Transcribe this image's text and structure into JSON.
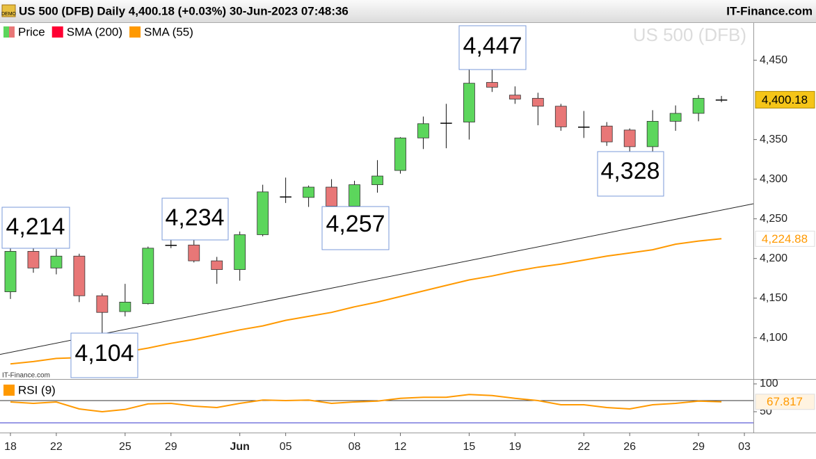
{
  "header": {
    "badge": "DEMO",
    "title": "US 500 (DFB) Daily 4,400.18 (+0.03%) 30-Jun-2023 07:48:36",
    "brand": "IT-Finance.com",
    "source": "IT-Finance.com"
  },
  "chart_data": [
    {
      "type": "candlestick",
      "watermark": "US 500 (DFB)",
      "categories": [
        "18",
        null,
        "22",
        null,
        null,
        "25",
        null,
        "29",
        null,
        null,
        "Jun",
        null,
        "05",
        null,
        null,
        "08",
        null,
        "12",
        null,
        null,
        "15",
        null,
        "19",
        null,
        null,
        "22",
        null,
        "26",
        null,
        null,
        "29",
        null,
        "03"
      ],
      "series": [
        {
          "name": "Price",
          "up_color": "#5cd65c",
          "down_color": "#e87777",
          "open": [
            4158,
            4209,
            4188,
            4203,
            4153,
            4133,
            4143,
            4217,
            4217,
            4197,
            4186,
            4230,
            4278,
            4277,
            4290,
            4266,
            4293,
            4311,
            4352,
            4371,
            4372,
            4422,
            4406,
            4402,
            4392,
            4366,
            4367,
            4362,
            4341,
            4373,
            4383,
            4400,
            null
          ],
          "high": [
            4214,
            4214,
            4212,
            4206,
            4156,
            4168,
            4215,
            4225,
            4234,
            4202,
            4234,
            4293,
            4302,
            4292,
            4300,
            4298,
            4324,
            4353,
            4379,
            4395,
            4442,
            4447,
            4417,
            4409,
            4395,
            4386,
            4372,
            4364,
            4387,
            4393,
            4406,
            4405,
            null
          ],
          "low": [
            4149,
            4182,
            4180,
            4145,
            4104,
            4127,
            4142,
            4213,
            4195,
            4168,
            4172,
            4228,
            4270,
            4265,
            4265,
            4257,
            4283,
            4307,
            4338,
            4339,
            4350,
            4410,
            4395,
            4368,
            4361,
            4352,
            4342,
            4328,
            4334,
            4361,
            4373,
            4397,
            null
          ],
          "close": [
            4209,
            4188,
            4203,
            4153,
            4132,
            4145,
            4213,
            4217,
            4197,
            4186,
            4230,
            4284,
            4278,
            4290,
            4266,
            4293,
            4304,
            4352,
            4370,
            4371,
            4421,
            4416,
            4401,
            4392,
            4366,
            4366,
            4347,
            4341,
            4373,
            4383,
            4402,
            4400.18,
            null
          ],
          "last_label": "4,400.18"
        },
        {
          "name": "SMA (200)",
          "color": "#ff0033",
          "values": [
            null,
            null,
            null,
            null,
            null,
            null,
            null,
            null,
            null,
            null,
            null,
            null,
            null,
            null,
            null,
            null,
            null,
            null,
            null,
            null,
            null,
            null,
            null,
            null,
            null,
            null,
            null,
            null,
            null,
            null,
            null,
            null,
            null
          ]
        },
        {
          "name": "SMA (55)",
          "color": "#ff9900",
          "values": [
            4067,
            4070,
            4074,
            4075,
            4077,
            4082,
            4087,
            4093,
            4098,
            4104,
            4110,
            4115,
            4122,
            4127,
            4132,
            4139,
            4145,
            4152,
            4159,
            4166,
            4173,
            4178,
            4184,
            4189,
            4193,
            4198,
            4203,
            4207,
            4211,
            4218,
            4222,
            4224.88,
            null
          ],
          "last_label": "4,224.88"
        }
      ],
      "trendline": {
        "start": 4079,
        "end": 4269
      },
      "annotations": [
        "4,214",
        "4,234",
        "4,257",
        "4,447",
        "4,104",
        "4,328"
      ],
      "ylim": [
        4048,
        4497
      ],
      "yticks": [
        {
          "value": 4100,
          "label": "4,100"
        },
        {
          "value": 4150,
          "label": "4,150"
        },
        {
          "value": 4200,
          "label": "4,200"
        },
        {
          "value": 4250,
          "label": "4,250"
        },
        {
          "value": 4300,
          "label": "4,300"
        },
        {
          "value": 4350,
          "label": "4,350"
        },
        {
          "value": 4450,
          "label": "4,450"
        }
      ]
    },
    {
      "type": "line",
      "series": [
        {
          "name": "RSI (9)",
          "color": "#ff9900",
          "values": [
            67.5,
            65,
            67.5,
            55,
            50,
            54,
            64,
            65,
            60,
            57.5,
            65,
            71,
            70,
            71,
            65,
            67.5,
            69,
            74,
            76,
            76,
            81,
            79,
            74,
            70,
            62.5,
            62.5,
            57.5,
            55,
            62.5,
            65,
            69,
            67.817,
            null
          ],
          "last_label": "67.817"
        }
      ],
      "levels": [
        {
          "value": 70,
          "color": "#333333"
        },
        {
          "value": 30,
          "color": "#3333cc"
        }
      ],
      "ylim": [
        12.5,
        105
      ],
      "yticks": [
        50,
        100
      ]
    }
  ]
}
